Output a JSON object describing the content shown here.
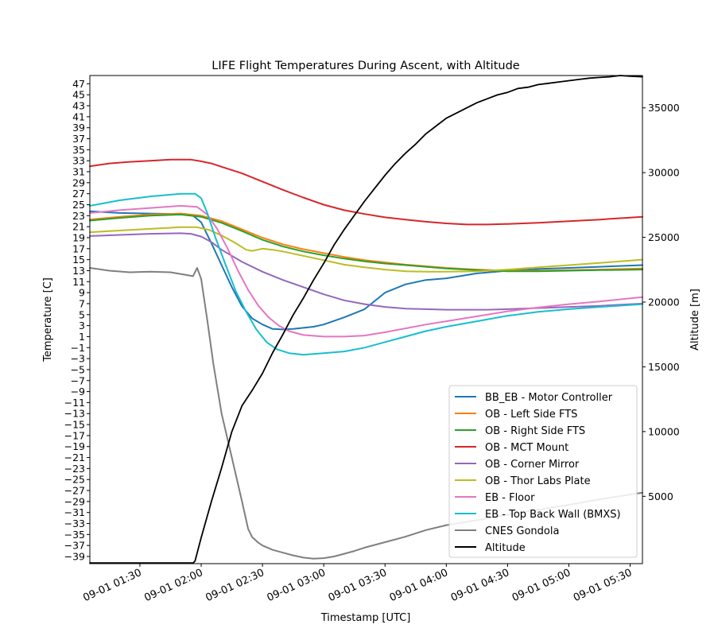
{
  "chart_data": {
    "type": "line",
    "title": "LIFE Flight Temperatures During Ascent, with Altitude",
    "xlabel": "Timestamp [UTC]",
    "ylabel": "Temperature [C]",
    "y2label": "Altitude [m]",
    "grid": false,
    "legend_position": "lower-right",
    "x_time_unit": "minutes after 09-01 00:00 UTC",
    "xlim": [
      65.5,
      336
    ],
    "ylim": [
      -40.3,
      48.5
    ],
    "y2lim": [
      -200,
      37500
    ],
    "x_ticks": [
      {
        "value": 90,
        "label": "09-01 01:30"
      },
      {
        "value": 120,
        "label": "09-01 02:00"
      },
      {
        "value": 150,
        "label": "09-01 02:30"
      },
      {
        "value": 180,
        "label": "09-01 03:00"
      },
      {
        "value": 210,
        "label": "09-01 03:30"
      },
      {
        "value": 240,
        "label": "09-01 04:00"
      },
      {
        "value": 270,
        "label": "09-01 04:30"
      },
      {
        "value": 300,
        "label": "09-01 05:00"
      },
      {
        "value": 330,
        "label": "09-01 05:30"
      }
    ],
    "y_ticks": [
      -39,
      -37,
      -35,
      -33,
      -31,
      -29,
      -27,
      -25,
      -23,
      -21,
      -19,
      -17,
      -15,
      -13,
      -11,
      -9,
      -7,
      -5,
      -3,
      -1,
      1,
      3,
      5,
      7,
      9,
      11,
      13,
      15,
      17,
      19,
      21,
      23,
      25,
      27,
      29,
      31,
      33,
      35,
      37,
      39,
      41,
      43,
      45,
      47
    ],
    "y_tick_labels": [
      "−39",
      "−37",
      "−35",
      "−33",
      "−31",
      "−29",
      "−27",
      "−25",
      "−23",
      "−21",
      "−19",
      "−17",
      "−15",
      "−13",
      "−11",
      "−9",
      "−7",
      "−5",
      "−3",
      "−1",
      "1",
      "3",
      "5",
      "7",
      "9",
      "11",
      "13",
      "15",
      "17",
      "19",
      "21",
      "23",
      "25",
      "27",
      "29",
      "31",
      "33",
      "35",
      "37",
      "39",
      "41",
      "43",
      "45",
      "47"
    ],
    "y2_ticks": [
      5000,
      10000,
      15000,
      20000,
      25000,
      30000,
      35000
    ],
    "y2_tick_labels": [
      "5000",
      "10000",
      "15000",
      "20000",
      "25000",
      "30000",
      "35000"
    ],
    "series": [
      {
        "name": "BB_EB - Motor Controller",
        "color": "#1f77b4",
        "axis": "left",
        "x": [
          65.5,
          80,
          95,
          110,
          116,
          120,
          125,
          130,
          135,
          140,
          145,
          150,
          155,
          160,
          165,
          170,
          175,
          180,
          190,
          200,
          210,
          220,
          230,
          240,
          255,
          270,
          285,
          300,
          315,
          336
        ],
        "y": [
          23.8,
          23.5,
          23.4,
          23.3,
          23.0,
          21.8,
          18.0,
          14.0,
          10.0,
          6.5,
          4.3,
          3.2,
          2.4,
          2.3,
          2.4,
          2.6,
          2.8,
          3.2,
          4.5,
          6.0,
          9.0,
          10.5,
          11.3,
          11.6,
          12.5,
          13.0,
          13.3,
          13.5,
          13.7,
          14.0
        ]
      },
      {
        "name": "OB - Left Side FTS",
        "color": "#ff7f0e",
        "axis": "left",
        "x": [
          65.5,
          80,
          95,
          110,
          120,
          130,
          140,
          150,
          160,
          170,
          180,
          190,
          200,
          210,
          220,
          230,
          240,
          255,
          270,
          285,
          300,
          315,
          336
        ],
        "y": [
          22.3,
          22.8,
          23.2,
          23.4,
          23.0,
          22.0,
          20.5,
          19.0,
          17.8,
          16.9,
          16.2,
          15.5,
          14.9,
          14.5,
          14.1,
          13.8,
          13.5,
          13.2,
          13.0,
          13.0,
          13.1,
          13.2,
          13.4
        ]
      },
      {
        "name": "OB - Right Side FTS",
        "color": "#2ca02c",
        "axis": "left",
        "x": [
          65.5,
          80,
          95,
          110,
          120,
          130,
          140,
          150,
          160,
          170,
          180,
          190,
          200,
          210,
          220,
          230,
          240,
          255,
          270,
          285,
          300,
          315,
          336
        ],
        "y": [
          22.1,
          22.6,
          23.0,
          23.2,
          22.8,
          21.7,
          20.2,
          18.6,
          17.4,
          16.5,
          15.8,
          15.2,
          14.7,
          14.3,
          14.0,
          13.7,
          13.4,
          13.1,
          12.9,
          12.9,
          13.0,
          13.1,
          13.2
        ]
      },
      {
        "name": "OB - MCT Mount",
        "color": "#d62728",
        "axis": "left",
        "x": [
          65.5,
          75,
          85,
          95,
          105,
          115,
          120,
          125,
          130,
          140,
          150,
          160,
          170,
          180,
          190,
          200,
          210,
          220,
          230,
          240,
          250,
          260,
          270,
          285,
          300,
          315,
          336
        ],
        "y": [
          32.0,
          32.5,
          32.8,
          33.0,
          33.2,
          33.2,
          32.9,
          32.5,
          31.9,
          30.7,
          29.2,
          27.7,
          26.3,
          25.0,
          24.0,
          23.3,
          22.7,
          22.3,
          21.9,
          21.6,
          21.4,
          21.4,
          21.5,
          21.7,
          22.0,
          22.3,
          22.8
        ]
      },
      {
        "name": "OB - Corner Mirror",
        "color": "#9467bd",
        "axis": "left",
        "x": [
          65.5,
          80,
          95,
          110,
          115,
          120,
          125,
          130,
          140,
          150,
          160,
          170,
          180,
          190,
          200,
          210,
          220,
          230,
          240,
          250,
          260,
          270,
          285,
          300,
          315,
          336
        ],
        "y": [
          19.3,
          19.5,
          19.7,
          19.8,
          19.7,
          19.2,
          18.2,
          16.8,
          14.6,
          12.8,
          11.3,
          10.0,
          8.7,
          7.6,
          6.9,
          6.4,
          6.1,
          6.0,
          5.9,
          5.9,
          5.9,
          6.0,
          6.2,
          6.4,
          6.6,
          7.0
        ]
      },
      {
        "name": "OB - Thor Labs Plate",
        "color": "#bcbd22",
        "axis": "left",
        "x": [
          65.5,
          80,
          95,
          110,
          118,
          124,
          130,
          136,
          142,
          145,
          150,
          155,
          160,
          170,
          180,
          190,
          200,
          210,
          220,
          230,
          240,
          255,
          270,
          285,
          300,
          315,
          336
        ],
        "y": [
          20.0,
          20.3,
          20.6,
          20.9,
          20.9,
          20.4,
          19.4,
          18.2,
          16.8,
          16.6,
          17.0,
          16.8,
          16.5,
          15.7,
          14.9,
          14.1,
          13.6,
          13.2,
          12.9,
          12.8,
          12.8,
          12.9,
          13.2,
          13.6,
          14.0,
          14.4,
          15.0
        ]
      },
      {
        "name": "EB - Floor",
        "color": "#e377c2",
        "axis": "left",
        "x": [
          65.5,
          80,
          95,
          110,
          118,
          123,
          128,
          133,
          138,
          143,
          148,
          153,
          158,
          163,
          170,
          180,
          190,
          200,
          210,
          220,
          230,
          240,
          255,
          270,
          285,
          300,
          315,
          336
        ],
        "y": [
          23.5,
          24.0,
          24.4,
          24.8,
          24.6,
          23.2,
          20.5,
          17.0,
          13.0,
          9.5,
          6.6,
          4.5,
          3.0,
          2.0,
          1.3,
          1.0,
          1.0,
          1.2,
          1.8,
          2.5,
          3.2,
          3.8,
          4.7,
          5.6,
          6.3,
          6.9,
          7.4,
          8.2
        ]
      },
      {
        "name": "EB - Top Back Wall (BMXS)",
        "color": "#17becf",
        "axis": "left",
        "x": [
          65.5,
          80,
          95,
          110,
          117,
          120,
          123,
          127,
          132,
          137,
          142,
          147,
          152,
          157,
          163,
          170,
          180,
          190,
          200,
          210,
          220,
          230,
          240,
          255,
          270,
          285,
          300,
          315,
          336
        ],
        "y": [
          24.8,
          25.8,
          26.5,
          27.0,
          27.0,
          26.2,
          23.5,
          19.0,
          14.0,
          9.2,
          5.5,
          2.3,
          0.0,
          -1.3,
          -2.0,
          -2.3,
          -2.0,
          -1.7,
          -1.0,
          0.0,
          1.0,
          2.0,
          2.8,
          3.8,
          4.8,
          5.5,
          6.0,
          6.4,
          6.9
        ]
      },
      {
        "name": "CNES Gondola",
        "color": "#7f7f7f",
        "axis": "left",
        "x": [
          65.5,
          75,
          85,
          95,
          105,
          113,
          116,
          118,
          120,
          123,
          126,
          130,
          135,
          140,
          143,
          145,
          148,
          150,
          155,
          160,
          165,
          170,
          175,
          180,
          185,
          190,
          195,
          200,
          210,
          220,
          230,
          240,
          255,
          270,
          285,
          300,
          315,
          336
        ],
        "y": [
          13.5,
          13.0,
          12.7,
          12.8,
          12.7,
          12.2,
          12.0,
          13.5,
          11.5,
          4.0,
          -4.0,
          -13.0,
          -21.0,
          -29.0,
          -34.0,
          -35.5,
          -36.5,
          -37.0,
          -37.8,
          -38.3,
          -38.8,
          -39.2,
          -39.4,
          -39.3,
          -39.0,
          -38.5,
          -38.0,
          -37.4,
          -36.4,
          -35.4,
          -34.2,
          -33.3,
          -32.4,
          -31.4,
          -30.5,
          -29.6,
          -28.6,
          -27.4
        ]
      },
      {
        "name": "Altitude",
        "color": "#000000",
        "axis": "right",
        "x": [
          65.5,
          116,
          117,
          120,
          125,
          130,
          135,
          140,
          145,
          150,
          155,
          160,
          165,
          170,
          175,
          180,
          185,
          190,
          195,
          200,
          205,
          210,
          215,
          220,
          225,
          230,
          235,
          240,
          245,
          250,
          255,
          260,
          265,
          270,
          275,
          280,
          285,
          290,
          295,
          300,
          305,
          310,
          315,
          320,
          325,
          330,
          336
        ],
        "y": [
          -150,
          -150,
          0,
          1800,
          4600,
          7200,
          10000,
          12000,
          13200,
          14500,
          16100,
          17500,
          19000,
          20300,
          21700,
          23000,
          24400,
          25600,
          26700,
          27800,
          28800,
          29800,
          30700,
          31500,
          32200,
          33000,
          33600,
          34200,
          34600,
          35000,
          35400,
          35700,
          36000,
          36200,
          36500,
          36600,
          36800,
          36900,
          37000,
          37100,
          37200,
          37300,
          37350,
          37400,
          37500,
          37450,
          37400
        ]
      }
    ]
  }
}
